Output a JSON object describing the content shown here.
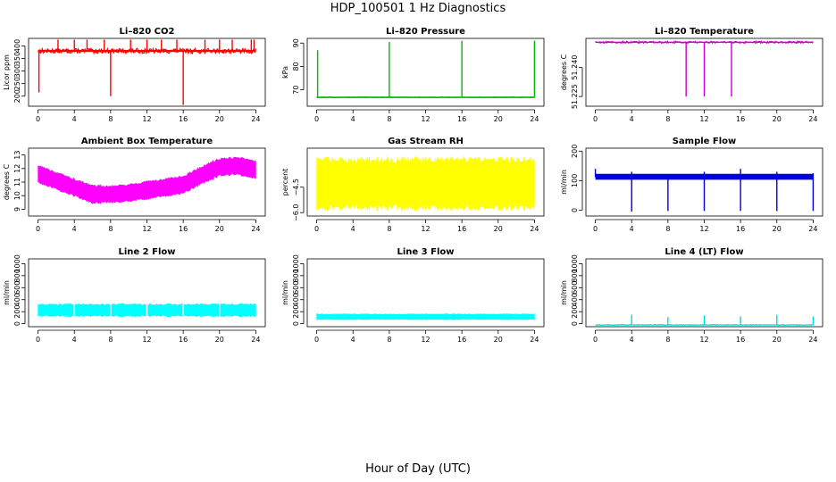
{
  "main_title": "HDP_100501  1 Hz Diagnostics",
  "x_caption": "Hour of Day (UTC)",
  "chart_data": [
    {
      "type": "line",
      "title": "Li–820 CO2",
      "ylabel": "Licor ppm",
      "color": "#ff0000",
      "xlim": [
        0,
        24
      ],
      "ylim": [
        160,
        430
      ],
      "xticks": [
        0,
        4,
        8,
        12,
        16,
        20,
        24
      ],
      "yticks": [
        200,
        250,
        300,
        350,
        400
      ],
      "ytick_labels": [
        "200",
        "250",
        "300",
        "350",
        "400"
      ],
      "base": 380,
      "noise": 10,
      "band": 4,
      "spikes_up": [
        [
          2.2,
          425
        ],
        [
          4,
          425
        ],
        [
          5.4,
          425
        ],
        [
          7.3,
          425
        ],
        [
          10.2,
          425
        ],
        [
          12,
          425
        ],
        [
          13.6,
          425
        ],
        [
          15.3,
          425
        ],
        [
          18.4,
          425
        ],
        [
          20,
          425
        ],
        [
          21.4,
          425
        ],
        [
          23.5,
          425
        ],
        [
          23.8,
          425
        ]
      ],
      "spikes_down": [
        [
          0.1,
          215
        ],
        [
          8,
          200
        ],
        [
          16,
          165
        ]
      ]
    },
    {
      "type": "line",
      "title": "Li–820 Pressure",
      "ylabel": "kPa",
      "color": "#00bb00",
      "xlim": [
        0,
        24
      ],
      "ylim": [
        63,
        92
      ],
      "xticks": [
        0,
        4,
        8,
        12,
        16,
        20,
        24
      ],
      "yticks": [
        70,
        80,
        90
      ],
      "ytick_labels": [
        "70",
        "80",
        "90"
      ],
      "base": 66.8,
      "noise": 0.2,
      "band": 0.3,
      "spikes_up": [
        [
          0.1,
          87
        ],
        [
          8,
          90.5
        ],
        [
          16,
          91
        ],
        [
          24,
          91
        ]
      ],
      "spikes_down": []
    },
    {
      "type": "line",
      "title": "Li–820 Temperature",
      "ylabel": "degrees C",
      "color": "#cc00cc",
      "xlim": [
        0,
        24
      ],
      "ylim": [
        51.22,
        51.255
      ],
      "xticks": [
        0,
        4,
        8,
        12,
        16,
        20,
        24
      ],
      "yticks": [
        51.225,
        51.24
      ],
      "ytick_labels": [
        "51.225",
        "51.240"
      ],
      "base": 51.253,
      "noise": 0.0005,
      "band": 0.0003,
      "spikes_up": [],
      "spikes_down": [
        [
          10,
          51.225
        ],
        [
          12,
          51.225
        ],
        [
          15,
          51.225
        ]
      ]
    },
    {
      "type": "area",
      "title": "Ambient Box Temperature",
      "ylabel": "degrees C",
      "color": "#ff00ff",
      "xlim": [
        0,
        24
      ],
      "ylim": [
        8.5,
        13.5
      ],
      "xticks": [
        0,
        4,
        8,
        12,
        16,
        20,
        24
      ],
      "yticks": [
        9,
        10,
        11,
        12,
        13
      ],
      "ytick_labels": [
        "9",
        "10",
        "11",
        "12",
        "13"
      ],
      "center": [
        [
          0,
          11.6
        ],
        [
          2,
          11.1
        ],
        [
          4,
          10.6
        ],
        [
          6,
          10.1
        ],
        [
          8,
          10.1
        ],
        [
          10,
          10.2
        ],
        [
          12,
          10.4
        ],
        [
          14,
          10.6
        ],
        [
          16,
          10.8
        ],
        [
          18,
          11.5
        ],
        [
          20,
          12.1
        ],
        [
          22,
          12.2
        ],
        [
          24,
          11.9
        ]
      ],
      "halfwidth": 0.7
    },
    {
      "type": "area",
      "title": "Gas Stream RH",
      "ylabel": "percent",
      "color": "#ffff00",
      "xlim": [
        0,
        24
      ],
      "ylim": [
        -6.2,
        -2.2
      ],
      "xticks": [
        0,
        4,
        8,
        12,
        16,
        20,
        24
      ],
      "yticks": [
        -6,
        -4.5
      ],
      "ytick_labels": [
        "−6.0",
        "−4.5"
      ],
      "center": [
        [
          0,
          -4.3
        ],
        [
          24,
          -4.3
        ]
      ],
      "halfwidth": 1.6
    },
    {
      "type": "line",
      "title": "Sample Flow",
      "ylabel": "ml/min",
      "color": "#0000dd",
      "xlim": [
        0,
        24
      ],
      "ylim": [
        -20,
        210
      ],
      "xticks": [
        0,
        4,
        8,
        12,
        16,
        20,
        24
      ],
      "yticks": [
        0,
        100,
        200
      ],
      "ytick_labels": [
        "0",
        "100",
        "200"
      ],
      "base": 113,
      "noise": 4,
      "band": 10,
      "spikes_up": [
        [
          0,
          140
        ],
        [
          4,
          130
        ],
        [
          12,
          130
        ],
        [
          16,
          140
        ],
        [
          20,
          130
        ],
        [
          24,
          125
        ]
      ],
      "spikes_down": [
        [
          4,
          -5
        ],
        [
          8,
          -3
        ],
        [
          12,
          -3
        ],
        [
          16,
          -3
        ],
        [
          20,
          -3
        ],
        [
          24,
          -3
        ]
      ]
    },
    {
      "type": "area",
      "title": "Line 2 Flow",
      "ylabel": "ml/min",
      "color": "#00ffff",
      "xlim": [
        0,
        24
      ],
      "ylim": [
        -50,
        1080
      ],
      "xticks": [
        0,
        4,
        8,
        12,
        16,
        20,
        24
      ],
      "yticks": [
        0,
        200,
        400,
        600,
        800,
        1000
      ],
      "ytick_labels": [
        "0",
        "200",
        "400",
        "600",
        "800",
        "1000"
      ],
      "center": [
        [
          0,
          225
        ],
        [
          24,
          225
        ]
      ],
      "halfwidth": 110,
      "gaps": [
        4,
        8,
        12,
        16,
        20
      ]
    },
    {
      "type": "area",
      "title": "Line 3 Flow",
      "ylabel": "ml/min",
      "color": "#00ffff",
      "xlim": [
        0,
        24
      ],
      "ylim": [
        -50,
        1080
      ],
      "xticks": [
        0,
        4,
        8,
        12,
        16,
        20,
        24
      ],
      "yticks": [
        0,
        200,
        400,
        600,
        800,
        1000
      ],
      "ytick_labels": [
        "0",
        "200",
        "400",
        "600",
        "800",
        "1000"
      ],
      "center": [
        [
          0,
          115
        ],
        [
          24,
          115
        ]
      ],
      "halfwidth": 50,
      "gaps": []
    },
    {
      "type": "line",
      "title": "Line 4 (LT) Flow",
      "ylabel": "ml/min",
      "color": "#00dddd",
      "xlim": [
        0,
        24
      ],
      "ylim": [
        -50,
        1080
      ],
      "xticks": [
        0,
        4,
        8,
        12,
        16,
        20,
        24
      ],
      "yticks": [
        0,
        200,
        400,
        600,
        800,
        1000
      ],
      "ytick_labels": [
        "0",
        "200",
        "400",
        "600",
        "800",
        "1000"
      ],
      "base": -20,
      "noise": 6,
      "band": 5,
      "spikes_up": [
        [
          4,
          150
        ],
        [
          8,
          110
        ],
        [
          12,
          140
        ],
        [
          16,
          120
        ],
        [
          20,
          150
        ],
        [
          24,
          120
        ]
      ],
      "spikes_down": []
    }
  ]
}
